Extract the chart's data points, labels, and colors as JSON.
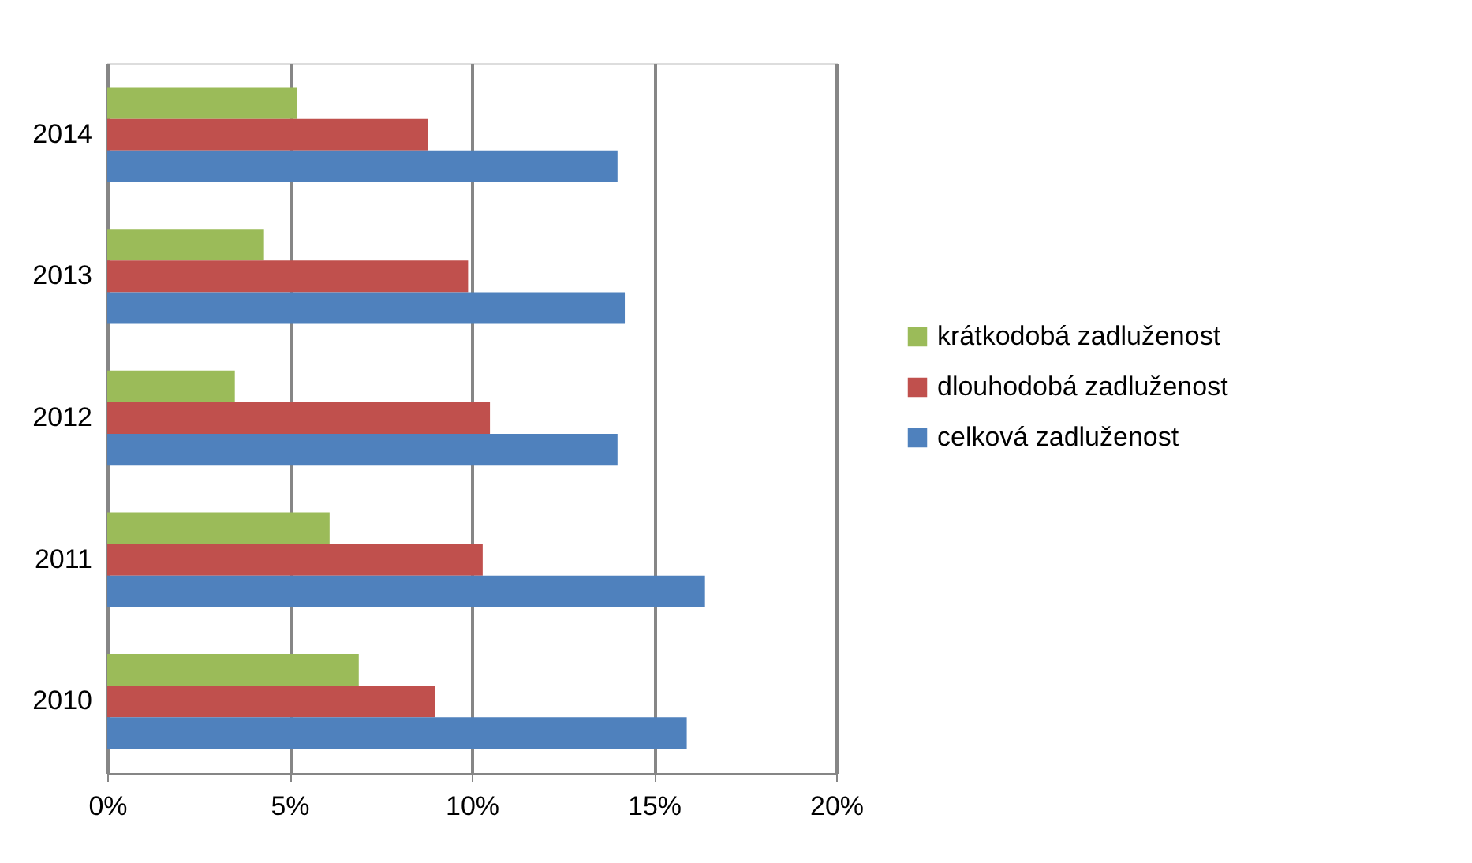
{
  "chart_data": {
    "type": "bar",
    "orientation": "horizontal",
    "categories": [
      "2014",
      "2013",
      "2012",
      "2011",
      "2010"
    ],
    "series": [
      {
        "name": "krátkodobá zadluženost",
        "color": "#9bbb59",
        "values": [
          5.2,
          4.3,
          3.5,
          6.1,
          6.9
        ]
      },
      {
        "name": "dlouhodobá zadluženost",
        "color": "#c0504d",
        "values": [
          8.8,
          9.9,
          10.5,
          10.3,
          9.0
        ]
      },
      {
        "name": "celková zadluženost",
        "color": "#4f81bd",
        "values": [
          14.0,
          14.2,
          14.0,
          16.4,
          15.9
        ]
      }
    ],
    "xlim": [
      0,
      20
    ],
    "xticks": [
      {
        "value": 0,
        "label": "0%"
      },
      {
        "value": 5,
        "label": "5%"
      },
      {
        "value": 10,
        "label": "10%"
      },
      {
        "value": 15,
        "label": "15%"
      },
      {
        "value": 20,
        "label": "20%"
      }
    ],
    "grid": "x",
    "legend": "right"
  }
}
